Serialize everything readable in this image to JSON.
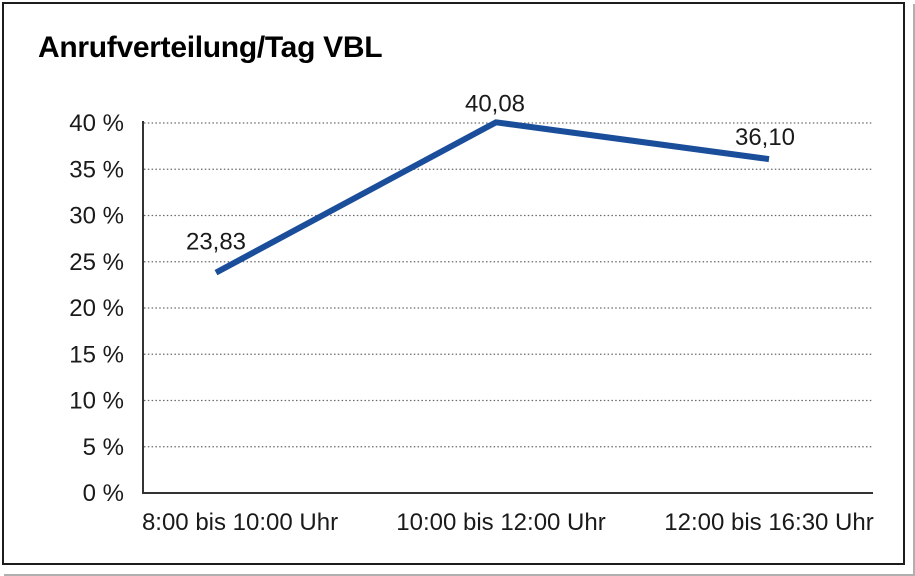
{
  "page": {
    "background_color": "#ffffff",
    "frame_border_color": "#1c1c1c"
  },
  "chart": {
    "title": "Anrufverteilung/Tag VBL"
  },
  "chart_data": {
    "type": "line",
    "title": "Anrufverteilung/Tag VBL",
    "categories": [
      "8:00 bis 10:00 Uhr",
      "10:00 bis 12:00 Uhr",
      "12:00 bis 16:30 Uhr"
    ],
    "values": [
      23.83,
      40.08,
      36.1
    ],
    "data_labels": [
      "23,83",
      "40,08",
      "36,10"
    ],
    "y_ticks": [
      0,
      5,
      10,
      15,
      20,
      25,
      30,
      35,
      40
    ],
    "y_tick_labels": [
      "0 %",
      "5 %",
      "10 %",
      "15 %",
      "20 %",
      "25 %",
      "30 %",
      "35 %",
      "40 %"
    ],
    "ylim": [
      0,
      40
    ],
    "xlabel": "",
    "ylabel": "",
    "grid": "horizontal-dotted",
    "legend": "none",
    "line_color": "#1a4e9a",
    "axis_color": "#333333",
    "gridline_color": "#6a6a6a",
    "label_color": "#1a1a1a"
  }
}
